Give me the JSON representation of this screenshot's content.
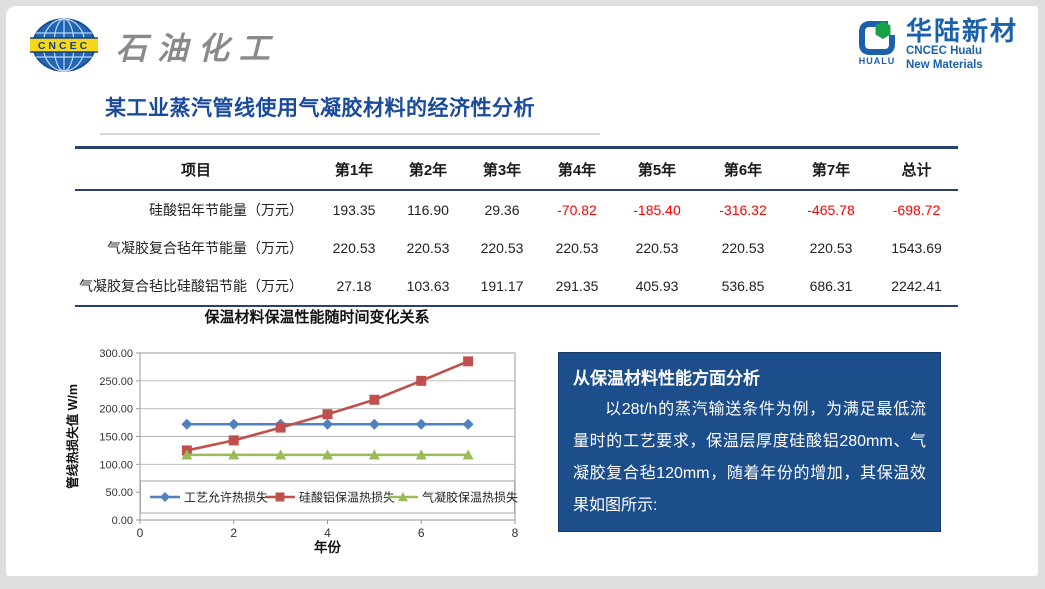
{
  "header": {
    "cncec_logo_text": "CNCEC",
    "dept_text": "石油化工",
    "hualu": {
      "icon_label": "HUALU",
      "name_cn": "华陆新材",
      "name_en_line1": "CNCEC Hualu",
      "name_en_line2": "New Materials"
    }
  },
  "page_title": "某工业蒸汽管线使用气凝胶材料的经济性分析",
  "table": {
    "columns": [
      "项目",
      "第1年",
      "第2年",
      "第3年",
      "第4年",
      "第5年",
      "第6年",
      "第7年",
      "总计"
    ],
    "rows": [
      {
        "label": "硅酸铝年节能量（万元）",
        "values": [
          "193.35",
          "116.90",
          "29.36",
          "-70.82",
          "-185.40",
          "-316.32",
          "-465.78",
          "-698.72"
        ]
      },
      {
        "label": "气凝胶复合毡年节能量（万元）",
        "values": [
          "220.53",
          "220.53",
          "220.53",
          "220.53",
          "220.53",
          "220.53",
          "220.53",
          "1543.69"
        ]
      },
      {
        "label": "气凝胶复合毡比硅酸铝节能（万元）",
        "values": [
          "27.18",
          "103.63",
          "191.17",
          "291.35",
          "405.93",
          "536.85",
          "686.31",
          "2242.41"
        ]
      }
    ]
  },
  "chart_data": {
    "type": "line",
    "title": "保温材料保温性能随时间变化关系",
    "xlabel": "年份",
    "ylabel": "管线热损失值 W/m",
    "x": [
      1,
      2,
      3,
      4,
      5,
      6,
      7
    ],
    "xlim": [
      0,
      8
    ],
    "xticks": [
      0,
      2,
      4,
      6,
      8
    ],
    "ylim": [
      0,
      300
    ],
    "ytick_step": 50,
    "grid": true,
    "legend_position": "bottom-inside",
    "series": [
      {
        "name": "工艺允许热损失",
        "color": "#4f81bd",
        "marker": "diamond",
        "values": [
          172,
          172,
          172,
          172,
          172,
          172,
          172
        ]
      },
      {
        "name": "硅酸铝保温热损失",
        "color": "#c0504d",
        "marker": "square",
        "values": [
          125,
          143,
          166,
          190,
          216,
          250,
          285
        ]
      },
      {
        "name": "气凝胶保温热损失",
        "color": "#9bbb59",
        "marker": "triangle",
        "values": [
          117,
          117,
          117,
          117,
          117,
          117,
          117
        ]
      }
    ]
  },
  "info_box": {
    "title": "从保温材料性能方面分析",
    "body": "以28t/h的蒸汽输送条件为例，为满足最低流量时的工艺要求，保温层厚度硅酸铝280mm、气凝胶复合毡120mm，随着年份的增加，其保温效果如图所示:"
  },
  "colors": {
    "title_blue": "#1a4a9c",
    "negative_red": "#fe0000",
    "info_box_blue": "#1d4e8c",
    "series_blue": "#4f81bd",
    "series_red": "#c0504d",
    "series_green": "#9bbb59"
  }
}
